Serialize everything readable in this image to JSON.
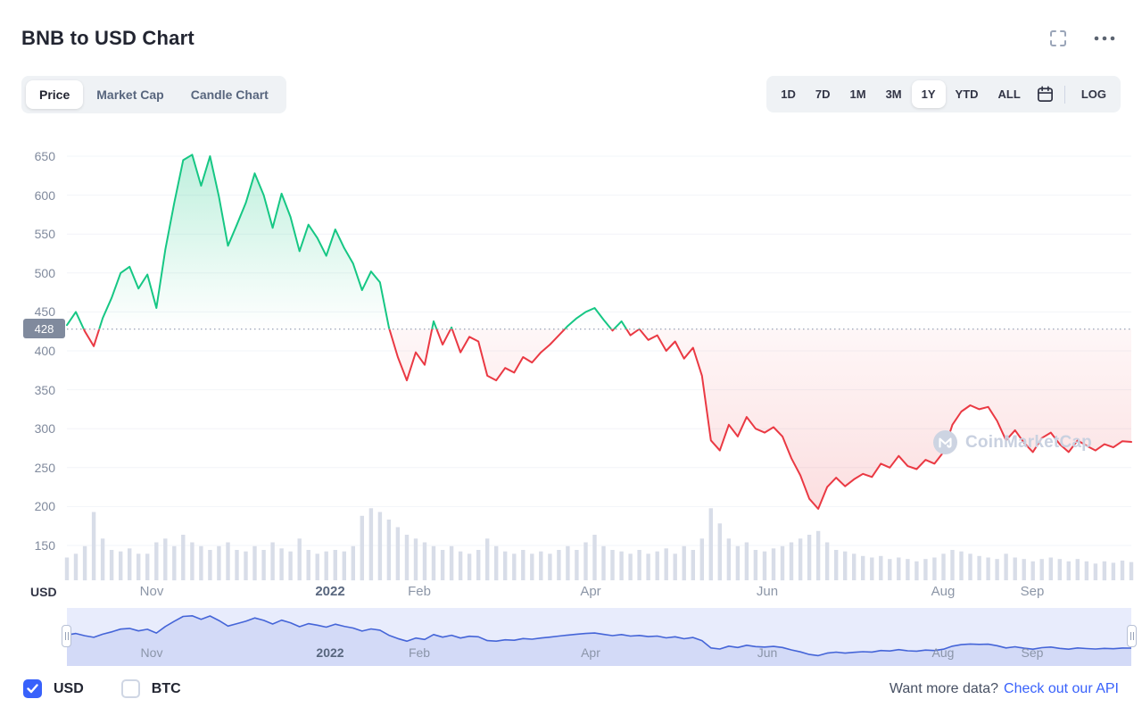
{
  "header": {
    "title": "BNB to USD Chart"
  },
  "chart_tabs": {
    "items": [
      {
        "label": "Price",
        "active": true
      },
      {
        "label": "Market Cap",
        "active": false
      },
      {
        "label": "Candle Chart",
        "active": false
      }
    ]
  },
  "range_controls": {
    "items": [
      {
        "label": "1D",
        "active": false
      },
      {
        "label": "7D",
        "active": false
      },
      {
        "label": "1M",
        "active": false
      },
      {
        "label": "3M",
        "active": false
      },
      {
        "label": "1Y",
        "active": true
      },
      {
        "label": "YTD",
        "active": false
      },
      {
        "label": "ALL",
        "active": false
      }
    ],
    "log_label": "LOG"
  },
  "watermark": {
    "text": "CoinMarketCap"
  },
  "footer": {
    "checkboxes": [
      {
        "label": "USD",
        "checked": true
      },
      {
        "label": "BTC",
        "checked": false
      }
    ],
    "prompt_text": "Want more data?",
    "link_text": "Check out our API"
  },
  "chart_data": {
    "type": "line",
    "title": "BNB to USD Chart",
    "unit_label": "USD",
    "threshold": 428,
    "threshold_label": "428",
    "y_ticks": [
      650,
      600,
      550,
      500,
      450,
      400,
      350,
      300,
      250,
      200,
      150
    ],
    "ylim": [
      120,
      680
    ],
    "x_range": [
      "Oct 2021",
      "Oct 2022"
    ],
    "x_tick_labels": [
      {
        "label": "Nov",
        "t": 0.08,
        "bold": false
      },
      {
        "label": "2022",
        "t": 0.247,
        "bold": true
      },
      {
        "label": "Feb",
        "t": 0.331,
        "bold": false
      },
      {
        "label": "Apr",
        "t": 0.492,
        "bold": false
      },
      {
        "label": "Jun",
        "t": 0.658,
        "bold": false
      },
      {
        "label": "Aug",
        "t": 0.823,
        "bold": false
      },
      {
        "label": "Sep",
        "t": 0.907,
        "bold": false
      }
    ],
    "prices": [
      433,
      450,
      425,
      406,
      442,
      468,
      500,
      508,
      480,
      498,
      455,
      530,
      590,
      645,
      652,
      612,
      650,
      598,
      535,
      562,
      590,
      628,
      600,
      558,
      602,
      572,
      528,
      562,
      545,
      522,
      556,
      532,
      512,
      478,
      502,
      488,
      430,
      392,
      362,
      398,
      382,
      438,
      408,
      430,
      398,
      418,
      412,
      368,
      362,
      378,
      372,
      392,
      385,
      398,
      408,
      420,
      432,
      442,
      450,
      455,
      440,
      426,
      438,
      420,
      428,
      414,
      420,
      400,
      412,
      390,
      404,
      368,
      285,
      272,
      305,
      290,
      315,
      300,
      295,
      302,
      290,
      262,
      240,
      210,
      197,
      225,
      237,
      226,
      235,
      242,
      238,
      255,
      250,
      265,
      252,
      248,
      260,
      255,
      270,
      305,
      322,
      330,
      325,
      328,
      310,
      285,
      298,
      282,
      270,
      288,
      295,
      280,
      270,
      285,
      278,
      272,
      280,
      276,
      284,
      283
    ],
    "volumes": [
      0.3,
      0.35,
      0.45,
      0.9,
      0.55,
      0.4,
      0.38,
      0.42,
      0.35,
      0.35,
      0.5,
      0.55,
      0.45,
      0.6,
      0.5,
      0.45,
      0.4,
      0.45,
      0.5,
      0.4,
      0.38,
      0.45,
      0.4,
      0.5,
      0.42,
      0.38,
      0.55,
      0.4,
      0.35,
      0.38,
      0.4,
      0.38,
      0.45,
      0.85,
      0.95,
      0.9,
      0.8,
      0.7,
      0.6,
      0.55,
      0.5,
      0.45,
      0.4,
      0.45,
      0.38,
      0.35,
      0.4,
      0.55,
      0.45,
      0.38,
      0.35,
      0.4,
      0.35,
      0.38,
      0.35,
      0.4,
      0.45,
      0.4,
      0.5,
      0.6,
      0.45,
      0.4,
      0.38,
      0.35,
      0.4,
      0.35,
      0.38,
      0.42,
      0.35,
      0.45,
      0.4,
      0.55,
      0.95,
      0.75,
      0.55,
      0.45,
      0.5,
      0.4,
      0.38,
      0.42,
      0.45,
      0.5,
      0.55,
      0.6,
      0.65,
      0.5,
      0.4,
      0.38,
      0.35,
      0.32,
      0.3,
      0.32,
      0.28,
      0.3,
      0.28,
      0.25,
      0.28,
      0.3,
      0.35,
      0.4,
      0.38,
      0.35,
      0.32,
      0.3,
      0.28,
      0.35,
      0.3,
      0.28,
      0.25,
      0.28,
      0.3,
      0.28,
      0.25,
      0.28,
      0.25,
      0.22,
      0.25,
      0.23,
      0.26,
      0.24
    ],
    "colors": {
      "up": "#16c784",
      "down": "#ea3943",
      "volume": "#d8dde8",
      "grid": "#f2f4f8",
      "threshold_line": "#9aa4b8",
      "navigator_bg": "#e8ecfc",
      "navigator_line": "#4565d8",
      "accent": "#3861fb"
    },
    "legend_position": "none",
    "grid": "horizontal-faint"
  }
}
